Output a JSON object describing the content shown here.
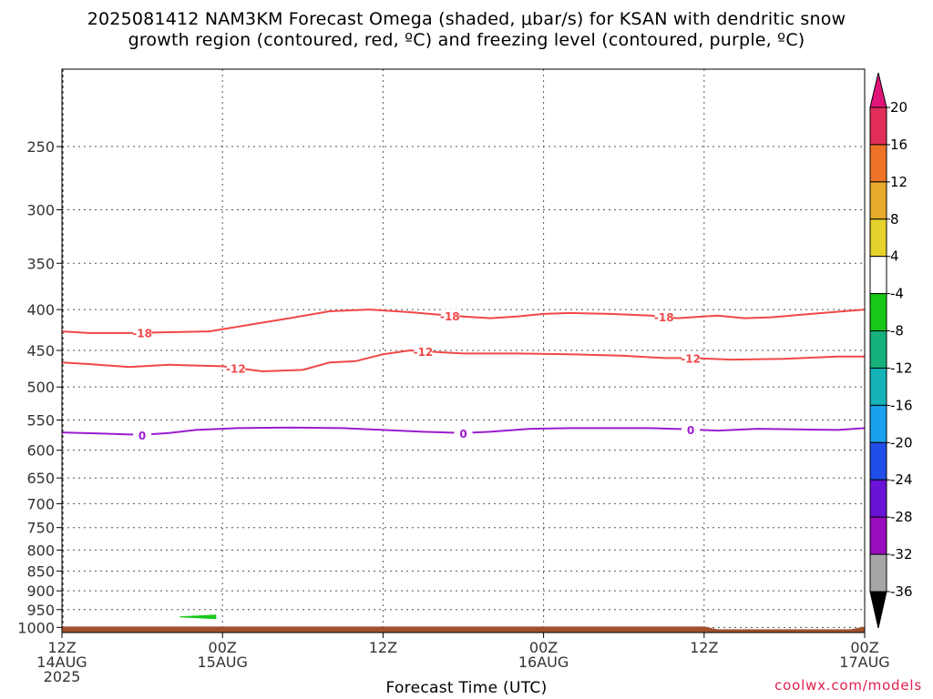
{
  "chart_data": {
    "type": "time-height",
    "title": "2025081412 NAM3KM Forecast Omega (shaded, μbar/s) for KSAN with dendritic snow",
    "subtitle": "growth region (contoured, red, ºC) and freezing level (contoured, purple, ºC)",
    "xlabel": "Forecast Time (UTC)",
    "credit": "coolwx.com/models",
    "x_hours_range": [
      12,
      72
    ],
    "x_ticks": [
      {
        "hour": 12,
        "lines": [
          "12Z",
          "14AUG",
          "2025"
        ]
      },
      {
        "hour": 24,
        "lines": [
          "00Z",
          "15AUG"
        ]
      },
      {
        "hour": 36,
        "lines": [
          "12Z"
        ]
      },
      {
        "hour": 48,
        "lines": [
          "00Z",
          "16AUG"
        ]
      },
      {
        "hour": 60,
        "lines": [
          "12Z"
        ]
      },
      {
        "hour": 72,
        "lines": [
          "00Z",
          "17AUG"
        ]
      }
    ],
    "y_ticks": [
      250,
      300,
      350,
      400,
      450,
      500,
      550,
      600,
      650,
      700,
      750,
      800,
      850,
      900,
      950,
      1000
    ],
    "y_range": [
      200,
      1015
    ],
    "y_scale": "log-pressure",
    "contours": [
      {
        "level": -18,
        "color": "#f04848",
        "points": [
          [
            12,
            426
          ],
          [
            14,
            428
          ],
          [
            17,
            428
          ],
          [
            20,
            427
          ],
          [
            23,
            426
          ],
          [
            26,
            418
          ],
          [
            29,
            410
          ],
          [
            32,
            402
          ],
          [
            35,
            400
          ],
          [
            38,
            403
          ],
          [
            41,
            407
          ],
          [
            44,
            410
          ],
          [
            46,
            408
          ],
          [
            48,
            405
          ],
          [
            50,
            404
          ],
          [
            53,
            405
          ],
          [
            56,
            407
          ],
          [
            58,
            410
          ],
          [
            61,
            407
          ],
          [
            63,
            410
          ],
          [
            65,
            409
          ],
          [
            68,
            405
          ],
          [
            72,
            400
          ]
        ],
        "labels": [
          {
            "hour": 18,
            "p": 428
          },
          {
            "hour": 41,
            "p": 407
          },
          {
            "hour": 57,
            "p": 410
          }
        ]
      },
      {
        "level": -12,
        "color": "#f04848",
        "points": [
          [
            12,
            466
          ],
          [
            14,
            468
          ],
          [
            17,
            472
          ],
          [
            20,
            469
          ],
          [
            22,
            470
          ],
          [
            24,
            471
          ],
          [
            27,
            478
          ],
          [
            30,
            476
          ],
          [
            32,
            466
          ],
          [
            34,
            464
          ],
          [
            36,
            455
          ],
          [
            38,
            450
          ],
          [
            40,
            452
          ],
          [
            42,
            454
          ],
          [
            46,
            454
          ],
          [
            50,
            455
          ],
          [
            54,
            457
          ],
          [
            57,
            460
          ],
          [
            59,
            460
          ],
          [
            62,
            462
          ],
          [
            66,
            461
          ],
          [
            70,
            458
          ],
          [
            72,
            458
          ]
        ],
        "labels": [
          {
            "hour": 25,
            "p": 472
          },
          {
            "hour": 39,
            "p": 451
          },
          {
            "hour": 59,
            "p": 460
          }
        ]
      },
      {
        "level": 0,
        "color": "#9a1dd0",
        "points": [
          [
            12,
            570
          ],
          [
            15,
            572
          ],
          [
            18,
            574
          ],
          [
            20,
            571
          ],
          [
            22,
            566
          ],
          [
            25,
            563
          ],
          [
            29,
            562
          ],
          [
            33,
            563
          ],
          [
            36,
            566
          ],
          [
            39,
            569
          ],
          [
            42,
            571
          ],
          [
            44,
            569
          ],
          [
            47,
            564
          ],
          [
            50,
            563
          ],
          [
            53,
            563
          ],
          [
            56,
            563
          ],
          [
            59,
            565
          ],
          [
            61,
            567
          ],
          [
            64,
            564
          ],
          [
            67,
            565
          ],
          [
            70,
            566
          ],
          [
            72,
            563
          ]
        ],
        "labels": [
          {
            "hour": 18,
            "p": 574
          },
          {
            "hour": 42,
            "p": 571
          },
          {
            "hour": 59,
            "p": 566
          }
        ]
      }
    ],
    "omega_features": [
      {
        "value_range": [
          -8,
          -4
        ],
        "color": "#18c818",
        "hour_range": [
          20.8,
          23.5
        ],
        "p": 970
      }
    ],
    "ground_color": "#a0522d",
    "colorbar": {
      "labels": [
        "20",
        "16",
        "12",
        "8",
        "4",
        "-4",
        "-8",
        "-12",
        "-16",
        "-20",
        "-24",
        "-28",
        "-32",
        "-36"
      ],
      "colors": [
        "#e32d5a",
        "#ed7426",
        "#e6ab2c",
        "#e6d22c",
        "#ffffff",
        "#18c818",
        "#16b07a",
        "#15b3b8",
        "#1aa0ec",
        "#1f4ee8",
        "#6a12d8",
        "#9a0cc0",
        "#a6a6a6"
      ],
      "top_arrow_color": "#e0157a",
      "bottom_arrow_color": "#000000"
    }
  }
}
